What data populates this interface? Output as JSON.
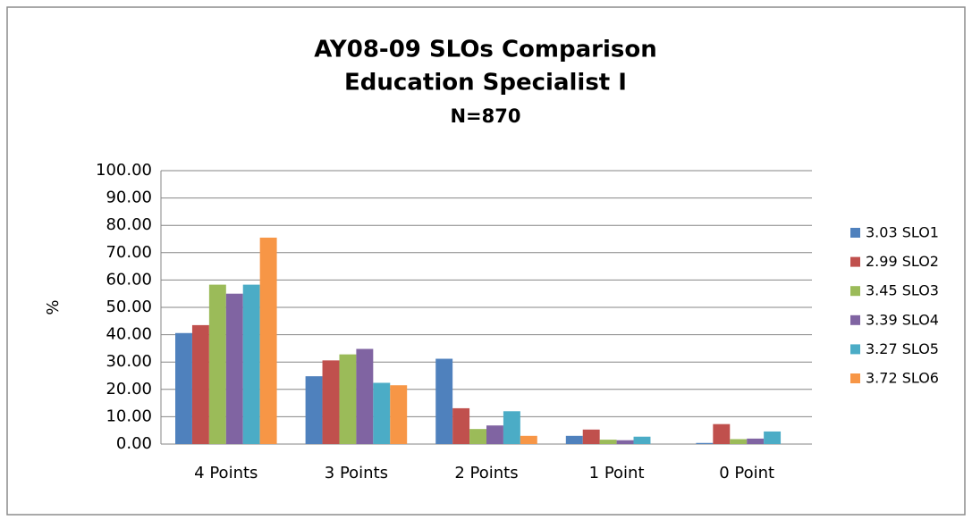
{
  "chart_data": {
    "type": "bar",
    "title_lines": [
      "AY08-09 SLOs Comparison",
      "Education Specialist I",
      "N=870"
    ],
    "y_label": "%",
    "categories": [
      "4 Points",
      "3 Points",
      "2 Points",
      "1 Point",
      "0 Point"
    ],
    "series": [
      {
        "name": "3.03 SLO1",
        "color": "#4f81bd",
        "values": [
          40.6,
          24.8,
          31.2,
          3.0,
          0.4
        ]
      },
      {
        "name": "2.99 SLO2",
        "color": "#c0504d",
        "values": [
          43.5,
          30.6,
          13.1,
          5.3,
          7.3
        ]
      },
      {
        "name": "3.45 SLO3",
        "color": "#9bbb59",
        "values": [
          58.3,
          32.8,
          5.5,
          1.6,
          1.8
        ]
      },
      {
        "name": "3.39 SLO4",
        "color": "#8064a2",
        "values": [
          55.0,
          34.8,
          6.8,
          1.4,
          2.0
        ]
      },
      {
        "name": "3.27 SLO5",
        "color": "#4bacc6",
        "values": [
          58.3,
          22.4,
          12.0,
          2.7,
          4.6
        ]
      },
      {
        "name": "3.72 SLO6",
        "color": "#f79646",
        "values": [
          75.5,
          21.5,
          3.0,
          0,
          0
        ]
      }
    ],
    "ylim": [
      0,
      100
    ],
    "yticks": [
      {
        "value": 0,
        "label": "0.00"
      },
      {
        "value": 10,
        "label": "10.00"
      },
      {
        "value": 20,
        "label": "20.00"
      },
      {
        "value": 30,
        "label": "30.00"
      },
      {
        "value": 40,
        "label": "40.00"
      },
      {
        "value": 50,
        "label": "50.00"
      },
      {
        "value": 60,
        "label": "60.00"
      },
      {
        "value": 70,
        "label": "70.00"
      },
      {
        "value": 80,
        "label": "80.00"
      },
      {
        "value": 90,
        "label": "90.00"
      },
      {
        "value": 100,
        "label": "100.00"
      }
    ],
    "grid": true,
    "legend": "right"
  }
}
